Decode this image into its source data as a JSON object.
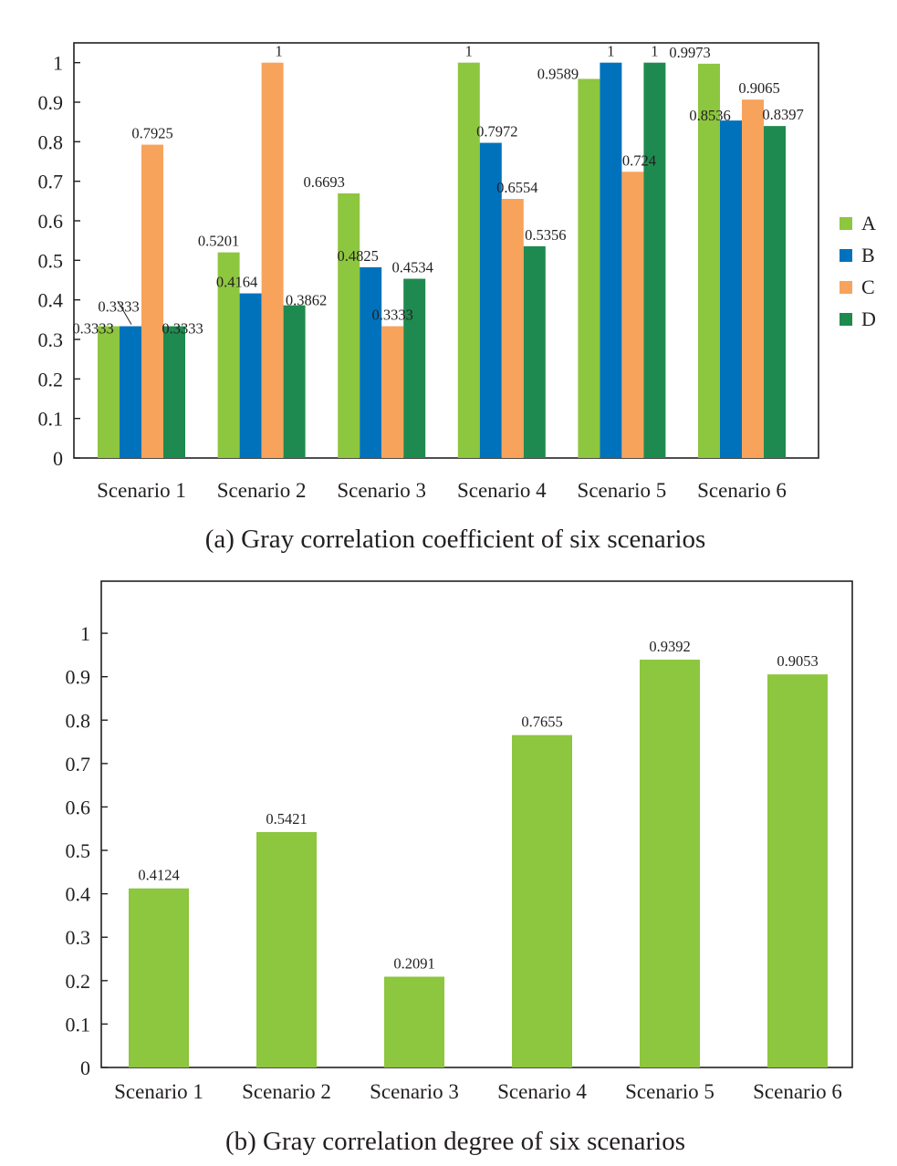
{
  "chart_data": [
    {
      "type": "bar",
      "title": "(a) Gray correlation coefficient of six scenarios",
      "categories": [
        "Scenario 1",
        "Scenario 2",
        "Scenario 3",
        "Scenario 4",
        "Scenario 5",
        "Scenario 6"
      ],
      "series": [
        {
          "name": "A",
          "color": "#8dc63f",
          "values": [
            0.3333,
            0.5201,
            0.6693,
            1,
            0.9589,
            0.9973
          ]
        },
        {
          "name": "B",
          "color": "#0072bc",
          "values": [
            0.3333,
            0.4164,
            0.4825,
            0.7972,
            1,
            0.8536
          ]
        },
        {
          "name": "C",
          "color": "#f7a35c",
          "values": [
            0.7925,
            1,
            0.3333,
            0.6554,
            0.724,
            0.9065
          ]
        },
        {
          "name": "D",
          "color": "#1e8a4f",
          "values": [
            0.3333,
            0.3862,
            0.4534,
            0.5356,
            1,
            0.8397
          ]
        }
      ],
      "data_labels": [
        [
          "0.3333",
          "0.5201",
          "0.6693",
          "1",
          "0.9589",
          "0.9973"
        ],
        [
          "0.3333",
          "0.4164",
          "0.4825",
          "0.7972",
          "1",
          "0.8536"
        ],
        [
          "0.7925",
          "1",
          "0.3333",
          "0.6554",
          "0.724",
          "0.9065"
        ],
        [
          "0.3333",
          "0.3862",
          "0.4534",
          "0.5356",
          "1",
          "0.8397"
        ]
      ],
      "yticks": [
        "0",
        "0.1",
        "0.2",
        "0.3",
        "0.4",
        "0.5",
        "0.6",
        "0.7",
        "0.8",
        "0.9",
        "1"
      ],
      "ylim": [
        0,
        1.05
      ],
      "legend_position": "right",
      "grid": false
    },
    {
      "type": "bar",
      "title": "(b) Gray correlation degree of six scenarios",
      "categories": [
        "Scenario 1",
        "Scenario 2",
        "Scenario 3",
        "Scenario 4",
        "Scenario 5",
        "Scenario 6"
      ],
      "series": [
        {
          "color": "#8dc63f",
          "values": [
            0.4124,
            0.5421,
            0.2091,
            0.7655,
            0.9392,
            0.9053
          ]
        }
      ],
      "data_labels": [
        [
          "0.4124",
          "0.5421",
          "0.2091",
          "0.7655",
          "0.9392",
          "0.9053"
        ]
      ],
      "yticks": [
        "0",
        "0.1",
        "0.2",
        "0.3",
        "0.4",
        "0.5",
        "0.6",
        "0.7",
        "0.8",
        "0.9",
        "1"
      ],
      "ylim": [
        0,
        1.12
      ],
      "grid": false
    }
  ]
}
